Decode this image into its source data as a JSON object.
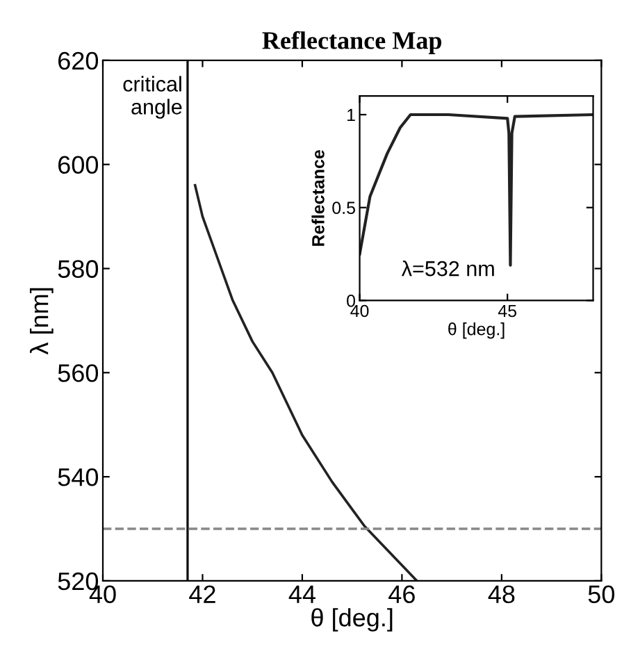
{
  "chart_data": [
    {
      "type": "line",
      "title": "Reflectance Map",
      "xlabel": "θ [deg.]",
      "ylabel": "λ [nm]",
      "series": [
        {
          "color": "#222222",
          "x": [
            41.85,
            42.0,
            42.3,
            42.6,
            43.0,
            43.4,
            44.0,
            44.6,
            45.25,
            45.8,
            46.3
          ],
          "values": [
            596,
            590,
            582,
            574,
            566,
            560,
            548,
            539,
            530.5,
            525,
            520
          ]
        }
      ],
      "xlim": [
        40,
        50
      ],
      "ylim": [
        520,
        620
      ],
      "xticks": [
        40,
        42,
        44,
        46,
        48,
        50
      ],
      "yticks": [
        520,
        540,
        560,
        580,
        600,
        620
      ],
      "ref_lines": [
        {
          "axis": "x",
          "value": 41.7,
          "label": "critical\nangle",
          "color": "#111111",
          "line_style": "solid"
        },
        {
          "axis": "y",
          "value": 530,
          "label": null,
          "color": "#888888",
          "line_style": "dashed"
        }
      ],
      "grid": false,
      "legend": false
    },
    {
      "type": "line",
      "xlabel": "θ [deg.]",
      "ylabel": "Reflectance",
      "series": [
        {
          "color": "#222222",
          "x": [
            40.0,
            40.35,
            40.93,
            41.37,
            41.72,
            43.0,
            45.0,
            45.05,
            45.1,
            45.15,
            45.25,
            47.9
          ],
          "values": [
            0.25,
            0.56,
            0.79,
            0.93,
            1.0,
            1.0,
            0.98,
            0.9,
            0.19,
            0.9,
            0.99,
            1.0
          ]
        }
      ],
      "xlim": [
        40,
        47.9
      ],
      "ylim": [
        0,
        1.1
      ],
      "xticks": [
        40,
        45
      ],
      "yticks": [
        0,
        0.5,
        1
      ],
      "annotations": [
        "λ=532 nm"
      ],
      "grid": false,
      "legend": false
    }
  ]
}
